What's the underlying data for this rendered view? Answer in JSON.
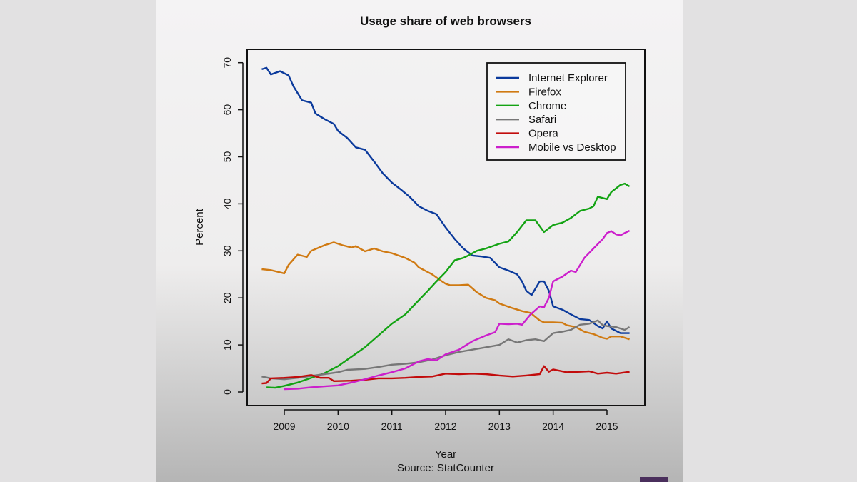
{
  "colors": {
    "outer_bg": "#e2e1e2",
    "badge": "#4a2f5c"
  },
  "chart_data": {
    "type": "line",
    "title": "Usage share of web browsers",
    "xlabel": "Year",
    "ylabel": "Percent",
    "caption": "Source: StatCounter",
    "xlim": [
      2008.4,
      2015.7
    ],
    "ylim": [
      -2,
      72
    ],
    "xticks": [
      2009,
      2010,
      2011,
      2012,
      2013,
      2014,
      2015
    ],
    "yticks": [
      0,
      10,
      20,
      30,
      40,
      50,
      60,
      70
    ],
    "grid": false,
    "legend_position": "top-right",
    "series": [
      {
        "name": "Internet Explorer",
        "color": "#0b3a9c",
        "x": [
          2008.58,
          2008.67,
          2008.75,
          2008.92,
          2009.08,
          2009.17,
          2009.33,
          2009.5,
          2009.58,
          2009.75,
          2009.92,
          2010.0,
          2010.17,
          2010.33,
          2010.5,
          2010.67,
          2010.83,
          2011.0,
          2011.17,
          2011.33,
          2011.5,
          2011.67,
          2011.83,
          2012.0,
          2012.17,
          2012.33,
          2012.5,
          2012.67,
          2012.83,
          2013.0,
          2013.17,
          2013.33,
          2013.42,
          2013.5,
          2013.6,
          2013.75,
          2013.83,
          2013.92,
          2014.0,
          2014.17,
          2014.33,
          2014.5,
          2014.67,
          2014.83,
          2014.92,
          2015.0,
          2015.08,
          2015.25,
          2015.42
        ],
        "y": [
          68.6,
          68.9,
          67.5,
          68.2,
          67.3,
          65,
          62,
          61.5,
          59.2,
          58,
          57,
          55.5,
          54,
          52,
          51.5,
          49,
          46.5,
          44.5,
          43,
          41.5,
          39.5,
          38.5,
          37.8,
          35,
          32.5,
          30.5,
          29,
          28.8,
          28.5,
          26.5,
          25.8,
          25,
          23.5,
          21.5,
          20.6,
          23.5,
          23.5,
          21.5,
          18.2,
          17.5,
          16.5,
          15.5,
          15.3,
          14,
          13.5,
          15,
          13.5,
          12.5,
          12.5
        ]
      },
      {
        "name": "Firefox",
        "color": "#d07a12",
        "x": [
          2008.58,
          2008.75,
          2009.0,
          2009.08,
          2009.25,
          2009.42,
          2009.5,
          2009.75,
          2009.92,
          2010.08,
          2010.25,
          2010.33,
          2010.5,
          2010.67,
          2010.83,
          2011.0,
          2011.25,
          2011.42,
          2011.5,
          2011.75,
          2011.92,
          2012.0,
          2012.08,
          2012.25,
          2012.42,
          2012.58,
          2012.75,
          2012.92,
          2013.0,
          2013.25,
          2013.42,
          2013.58,
          2013.75,
          2013.83,
          2014.0,
          2014.17,
          2014.25,
          2014.42,
          2014.58,
          2014.75,
          2014.92,
          2015.0,
          2015.08,
          2015.25,
          2015.42
        ],
        "y": [
          26.1,
          25.9,
          25.2,
          27,
          29.2,
          28.7,
          30,
          31.2,
          31.8,
          31.2,
          30.7,
          31,
          29.9,
          30.5,
          29.9,
          29.5,
          28.5,
          27.5,
          26.5,
          25,
          23.6,
          23,
          22.7,
          22.7,
          22.8,
          21.2,
          20,
          19.5,
          18.8,
          17.8,
          17.2,
          16.8,
          15.2,
          14.8,
          14.8,
          14.7,
          14.2,
          13.8,
          12.8,
          12.3,
          11.5,
          11.3,
          11.8,
          11.8,
          11.2
        ]
      },
      {
        "name": "Chrome",
        "color": "#13a313",
        "x": [
          2008.67,
          2008.83,
          2009.0,
          2009.25,
          2009.5,
          2009.75,
          2010.0,
          2010.25,
          2010.5,
          2010.75,
          2011.0,
          2011.25,
          2011.5,
          2011.67,
          2011.83,
          2012.0,
          2012.17,
          2012.33,
          2012.42,
          2012.58,
          2012.75,
          2013.0,
          2013.17,
          2013.33,
          2013.5,
          2013.67,
          2013.83,
          2014.0,
          2014.17,
          2014.33,
          2014.5,
          2014.67,
          2014.75,
          2014.83,
          2015.0,
          2015.08,
          2015.25,
          2015.33,
          2015.42
        ],
        "y": [
          1.0,
          0.9,
          1.3,
          2,
          3,
          4,
          5.5,
          7.5,
          9.5,
          12,
          14.5,
          16.5,
          19.5,
          21.5,
          23.5,
          25.5,
          28,
          28.5,
          29,
          30,
          30.5,
          31.5,
          32,
          34,
          36.5,
          36.5,
          34,
          35.5,
          36,
          37,
          38.5,
          39,
          39.5,
          41.5,
          41,
          42.5,
          44,
          44.3,
          43.7
        ]
      },
      {
        "name": "Safari",
        "color": "#777777",
        "x": [
          2008.58,
          2008.75,
          2009.0,
          2009.25,
          2009.5,
          2009.75,
          2010.0,
          2010.17,
          2010.5,
          2010.75,
          2011.0,
          2011.25,
          2011.5,
          2011.75,
          2012.0,
          2012.25,
          2012.5,
          2012.75,
          2013.0,
          2013.17,
          2013.33,
          2013.5,
          2013.67,
          2013.83,
          2014.0,
          2014.17,
          2014.33,
          2014.5,
          2014.67,
          2014.83,
          2014.92,
          2015.0,
          2015.17,
          2015.33,
          2015.42
        ],
        "y": [
          3.3,
          2.9,
          2.7,
          3,
          3.4,
          3.8,
          4.2,
          4.7,
          4.9,
          5.3,
          5.8,
          6,
          6.3,
          6.9,
          7.8,
          8.5,
          9,
          9.5,
          10,
          11.2,
          10.5,
          11,
          11.2,
          10.8,
          12.5,
          12.8,
          13.2,
          14.3,
          14.5,
          15.2,
          14.2,
          14,
          13.8,
          13.2,
          13.8
        ]
      },
      {
        "name": "Opera",
        "color": "#c20c0c",
        "x": [
          2008.58,
          2008.67,
          2008.75,
          2009.0,
          2009.25,
          2009.5,
          2009.67,
          2009.83,
          2009.92,
          2010.25,
          2010.5,
          2010.75,
          2011.0,
          2011.25,
          2011.5,
          2011.75,
          2012.0,
          2012.25,
          2012.5,
          2012.75,
          2013.0,
          2013.25,
          2013.5,
          2013.75,
          2013.83,
          2013.92,
          2014.0,
          2014.25,
          2014.5,
          2014.67,
          2014.83,
          2015.0,
          2015.17,
          2015.42
        ],
        "y": [
          1.8,
          1.9,
          2.9,
          3,
          3.2,
          3.6,
          3,
          3,
          2.3,
          2.4,
          2.6,
          2.9,
          2.9,
          3,
          3.2,
          3.3,
          3.9,
          3.8,
          3.9,
          3.8,
          3.5,
          3.3,
          3.5,
          3.8,
          5.5,
          4.3,
          4.8,
          4.2,
          4.3,
          4.4,
          3.9,
          4.1,
          3.9,
          4.3
        ]
      },
      {
        "name": "Mobile vs Desktop",
        "color": "#cc1fcc",
        "x": [
          2009.0,
          2009.25,
          2009.5,
          2009.75,
          2010.0,
          2010.25,
          2010.5,
          2010.75,
          2011.0,
          2011.25,
          2011.5,
          2011.67,
          2011.83,
          2012.0,
          2012.25,
          2012.5,
          2012.75,
          2012.92,
          2013.0,
          2013.17,
          2013.33,
          2013.42,
          2013.58,
          2013.75,
          2013.83,
          2013.92,
          2014.0,
          2014.17,
          2014.33,
          2014.42,
          2014.58,
          2014.75,
          2014.92,
          2015.0,
          2015.08,
          2015.17,
          2015.25,
          2015.33,
          2015.42
        ],
        "y": [
          0.6,
          0.7,
          1,
          1.2,
          1.4,
          2,
          2.7,
          3.5,
          4.2,
          5,
          6.5,
          7,
          6.7,
          8,
          9,
          10.8,
          12,
          12.7,
          14.5,
          14.4,
          14.5,
          14.3,
          16.5,
          18.2,
          18,
          20,
          23.5,
          24.5,
          25.8,
          25.5,
          28.5,
          30.5,
          32.5,
          33.8,
          34.2,
          33.5,
          33.3,
          33.8,
          34.3
        ]
      }
    ]
  }
}
